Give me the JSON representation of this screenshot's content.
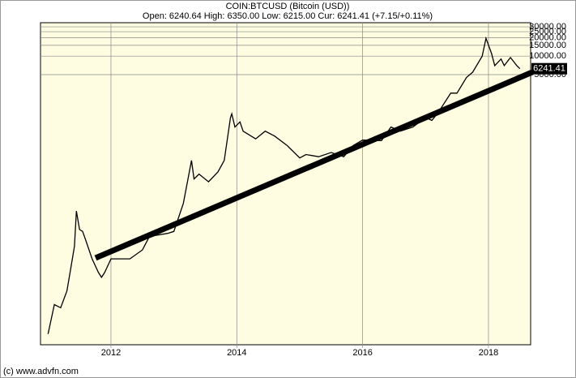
{
  "chart_data": {
    "type": "line",
    "title": "COIN:BTCUSD (Bitcoin (USD))",
    "subtitle": "Open: 6240.64 High: 6350.00 Low: 6215.00 Cur: 6241.41 (+7.15/+0.11%)",
    "source": "(c) www.advfn.com",
    "last_price_label": "6241.41",
    "log_scale": true,
    "grid": true,
    "color": "#000000",
    "x": [
      2011.0,
      2011.1,
      2011.2,
      2011.3,
      2011.35,
      2011.42,
      2011.45,
      2011.5,
      2011.55,
      2011.6,
      2011.7,
      2011.8,
      2011.85,
      2011.9,
      2012.0,
      2012.1,
      2012.3,
      2012.5,
      2012.6,
      2012.7,
      2012.9,
      2013.0,
      2013.15,
      2013.28,
      2013.32,
      2013.4,
      2013.55,
      2013.7,
      2013.8,
      2013.9,
      2013.92,
      2013.97,
      2014.05,
      2014.1,
      2014.3,
      2014.45,
      2014.6,
      2014.8,
      2015.0,
      2015.1,
      2015.3,
      2015.5,
      2015.7,
      2015.85,
      2016.0,
      2016.3,
      2016.45,
      2016.6,
      2016.8,
      2017.0,
      2017.1,
      2017.2,
      2017.4,
      2017.5,
      2017.65,
      2017.75,
      2017.9,
      2017.96,
      2018.05,
      2018.1,
      2018.2,
      2018.25,
      2018.35,
      2018.45,
      2018.5
    ],
    "values": [
      0.3,
      0.9,
      0.8,
      1.5,
      3,
      8,
      30,
      15,
      14,
      10,
      5,
      3,
      2.5,
      3,
      5,
      5,
      5,
      7,
      11,
      12,
      13,
      14,
      40,
      200,
      100,
      120,
      90,
      130,
      200,
      1000,
      1150,
      700,
      850,
      600,
      450,
      600,
      500,
      350,
      220,
      250,
      230,
      270,
      230,
      350,
      430,
      420,
      700,
      600,
      700,
      1000,
      900,
      1200,
      2500,
      2500,
      4500,
      5500,
      10000,
      19500,
      11000,
      7000,
      9000,
      7000,
      9500,
      7000,
      6241.41
    ],
    "xlim": [
      2010.88,
      2018.67
    ],
    "xticks": [
      2012,
      2014,
      2016,
      2018
    ],
    "ylim": [
      0.2,
      35000
    ],
    "yticks": [
      {
        "value": 5000,
        "label": "5000.00"
      },
      {
        "value": 10000,
        "label": "10000.00"
      },
      {
        "value": 15000,
        "label": "15000.00"
      },
      {
        "value": 20000,
        "label": "20000.00"
      },
      {
        "value": 25000,
        "label": "25000.00"
      },
      {
        "value": 30000,
        "label": "30000.00"
      }
    ]
  }
}
